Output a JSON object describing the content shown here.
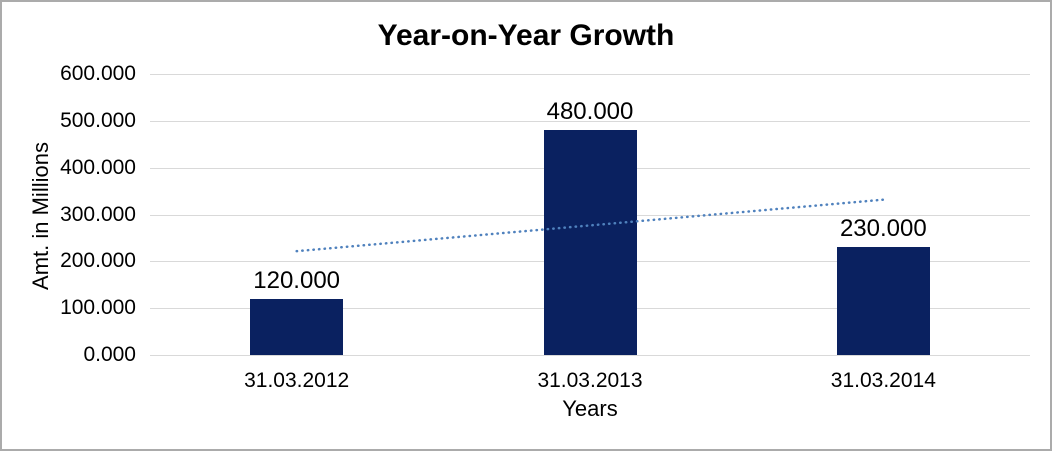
{
  "window": {
    "background_color": "#ffffff",
    "border_color": "#ababab"
  },
  "chart_data": {
    "type": "bar",
    "title": "Year-on-Year Growth",
    "xlabel": "Years",
    "ylabel": "Amt. in Millions",
    "categories": [
      "31.03.2012",
      "31.03.2013",
      "31.03.2014"
    ],
    "values": [
      120,
      480,
      230
    ],
    "value_labels": [
      "120.000",
      "480.000",
      "230.000"
    ],
    "ylim": [
      0,
      600
    ],
    "ytick_step": 100,
    "ytick_labels_top_to_bottom": [
      "600.000",
      "500.000",
      "400.000",
      "300.000",
      "200.000",
      "100.000",
      "0.000"
    ],
    "grid": "horizontal",
    "legend": "none",
    "bar_color": "#0a2160",
    "gridline_color": "#d9d9d9",
    "text_color": "#000000",
    "trendline": {
      "type": "linear",
      "style": "dotted",
      "color": "#4f81bd",
      "start_value": 221.7,
      "end_value": 331.7
    }
  }
}
